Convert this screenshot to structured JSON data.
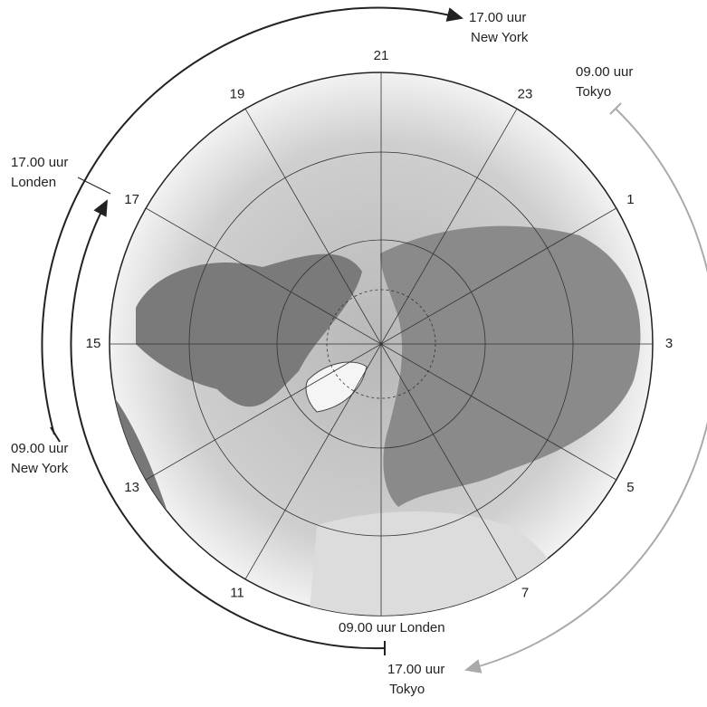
{
  "hour_labels": [
    "21",
    "23",
    "1",
    "3",
    "5",
    "7",
    "11",
    "13",
    "15",
    "17",
    "19"
  ],
  "annotations": [
    {
      "lines": [
        "17.00 uur",
        "New York"
      ]
    },
    {
      "lines": [
        "09.00 uur",
        "Tokyo"
      ]
    },
    {
      "lines": [
        "17.00 uur",
        "Londen"
      ]
    },
    {
      "lines": [
        "09.00 uur",
        "New York"
      ]
    },
    {
      "lines": [
        "09.00 uur Londen"
      ]
    },
    {
      "lines": [
        "17.00 uur",
        "Tokyo"
      ]
    }
  ]
}
